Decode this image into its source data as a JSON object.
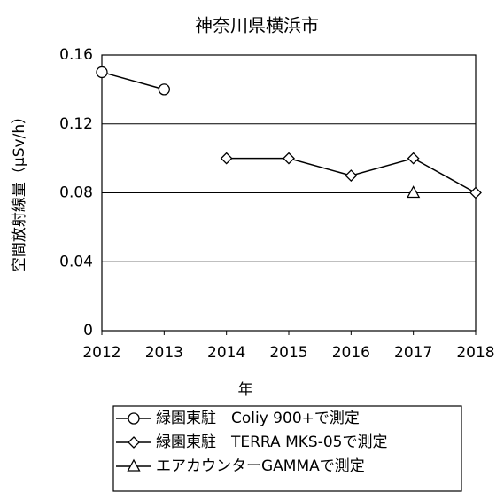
{
  "chart_data": {
    "type": "line",
    "title": "神奈川県横浜市",
    "y_label": "空間放射線量（μSv/h）",
    "x_label": "年",
    "x": [
      2012,
      2013,
      2014,
      2015,
      2016,
      2017,
      2018
    ],
    "series": [
      {
        "name": "緑園東駐　Coliy 900+で測定",
        "color": "#000000",
        "marker": "circle",
        "values": [
          0.15,
          0.14,
          null,
          null,
          null,
          null,
          null
        ]
      },
      {
        "name": "緑園東駐　TERRA MKS-05で測定",
        "color": "#000000",
        "marker": "diamond",
        "values": [
          null,
          null,
          0.1,
          0.1,
          0.09,
          0.1,
          0.08
        ]
      },
      {
        "name": "エアカウンターGAMMAで測定",
        "color": "#000000",
        "marker": "triangle",
        "values": [
          null,
          null,
          null,
          null,
          null,
          0.08,
          null
        ]
      }
    ],
    "xlim": [
      2012,
      2018
    ],
    "xticks": [
      2012,
      2013,
      2014,
      2015,
      2016,
      2017,
      2018
    ],
    "ylim": [
      0,
      0.16
    ],
    "yticks": [
      0,
      0.04,
      0.08,
      0.12,
      0.16
    ],
    "grid": true,
    "legend": "bottom"
  }
}
